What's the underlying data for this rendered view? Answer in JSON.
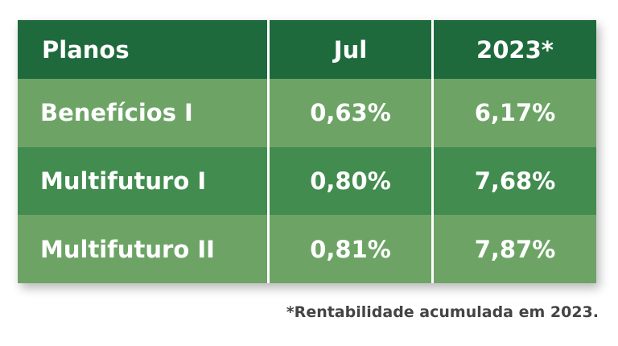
{
  "table": {
    "header": [
      "Planos",
      "Jul",
      "2023*"
    ],
    "rows": [
      [
        "Benefícios I",
        "0,63%",
        "6,17%"
      ],
      [
        "Multifuturo I",
        "0,80%",
        "7,68%"
      ],
      [
        "Multifuturo II",
        "0,81%",
        "7,87%"
      ]
    ]
  },
  "footnote": "*Rentabilidade acumulada em 2023."
}
